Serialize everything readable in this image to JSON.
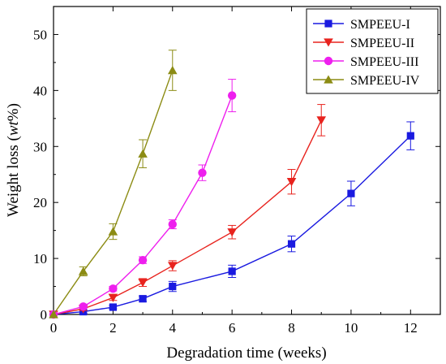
{
  "chart_data": {
    "type": "line",
    "xlabel": "Degradation time (weeks)",
    "ylabel_main": "Weight loss (",
    "ylabel_italic": "wt",
    "ylabel_end": "%)",
    "xlim": [
      0,
      13
    ],
    "ylim": [
      0,
      55
    ],
    "xticks": [
      0,
      2,
      4,
      6,
      8,
      10,
      12
    ],
    "yticks": [
      0,
      10,
      20,
      30,
      40,
      50
    ],
    "grid": false,
    "legend_position": "top-right",
    "series": [
      {
        "name": "SMPEEU-I",
        "color": "#1a1ae0",
        "marker": "square",
        "x": [
          0,
          1,
          2,
          3,
          4,
          6,
          8,
          10,
          12
        ],
        "y": [
          0,
          0.5,
          1.3,
          2.8,
          5.0,
          7.7,
          12.6,
          21.6,
          31.9
        ],
        "err": [
          0,
          0.3,
          0.3,
          0.5,
          0.9,
          1.1,
          1.4,
          2.2,
          2.5
        ]
      },
      {
        "name": "SMPEEU-II",
        "color": "#e8231e",
        "marker": "triangle-down",
        "x": [
          0,
          1,
          2,
          3,
          4,
          6,
          8,
          9
        ],
        "y": [
          0,
          1.0,
          3.0,
          5.7,
          8.7,
          14.7,
          23.7,
          34.7
        ],
        "err": [
          0,
          0.3,
          0.5,
          0.7,
          0.9,
          1.2,
          2.2,
          2.8
        ]
      },
      {
        "name": "SMPEEU-III",
        "color": "#ee1fee",
        "marker": "circle",
        "x": [
          0,
          1,
          2,
          3,
          4,
          5,
          6
        ],
        "y": [
          0,
          1.4,
          4.6,
          9.7,
          16.1,
          25.3,
          39.1
        ],
        "err": [
          0,
          0.3,
          0.4,
          0.6,
          0.8,
          1.4,
          2.9
        ]
      },
      {
        "name": "SMPEEU-IV",
        "color": "#8c8c14",
        "marker": "triangle-up",
        "x": [
          0,
          1,
          2,
          3,
          4
        ],
        "y": [
          0,
          7.7,
          14.8,
          28.7,
          43.6
        ],
        "err": [
          0,
          0.8,
          1.4,
          2.5,
          3.6
        ]
      }
    ]
  }
}
